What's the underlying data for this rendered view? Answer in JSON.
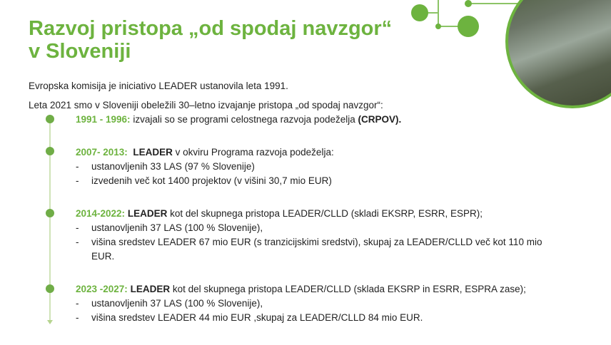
{
  "title_line1": "Razvoj pristopa „od spodaj navzgor“",
  "title_line2": "v Sloveniji",
  "intro1": "Evropska komisija je iniciativo LEADER ustanovila leta 1991.",
  "intro2": "Leta 2021 smo v Sloveniji obeležili 30–letno izvajanje pristopa „od spodaj navzgor“:",
  "colors": {
    "accent": "#6db33f"
  },
  "photo": "women washing laundry in stream",
  "timeline": [
    {
      "year": "1991 - 1996:",
      "lead": "",
      "text": " izvajali so se programi celostnega razvoja podeželja ",
      "bold_end": "(CRPOV).",
      "bullets": []
    },
    {
      "year": "2007- 2013:",
      "lead": "LEADER",
      "text": " v okviru Programa razvoja podeželja:",
      "bullets": [
        "ustanovljenih 33 LAS (97 % Slovenije)",
        "izvedenih več kot 1400 projektov (v višini 30,7 mio EUR)"
      ]
    },
    {
      "year": "2014-2022:",
      "lead": "LEADER",
      "text": " kot del skupnega pristopa LEADER/CLLD (skladi EKSRP, ESRR, ESPR);",
      "bullets": [
        "ustanovljenih 37 LAS (100 % Slovenije),",
        "višina sredstev LEADER 67 mio EUR (s tranzicijskimi sredstvi), skupaj za LEADER/CLLD več kot 110 mio EUR."
      ]
    },
    {
      "year": "2023 -2027:",
      "lead": "LEADER",
      "text": " kot del skupnega pristopa LEADER/CLLD (sklada EKSRP in ESRR, ESPRA zase);",
      "bullets": [
        "ustanovljenih 37 LAS (100 % Slovenije),",
        "višina sredstev LEADER 44 mio EUR ,skupaj za LEADER/CLLD 84 mio EUR."
      ]
    }
  ]
}
